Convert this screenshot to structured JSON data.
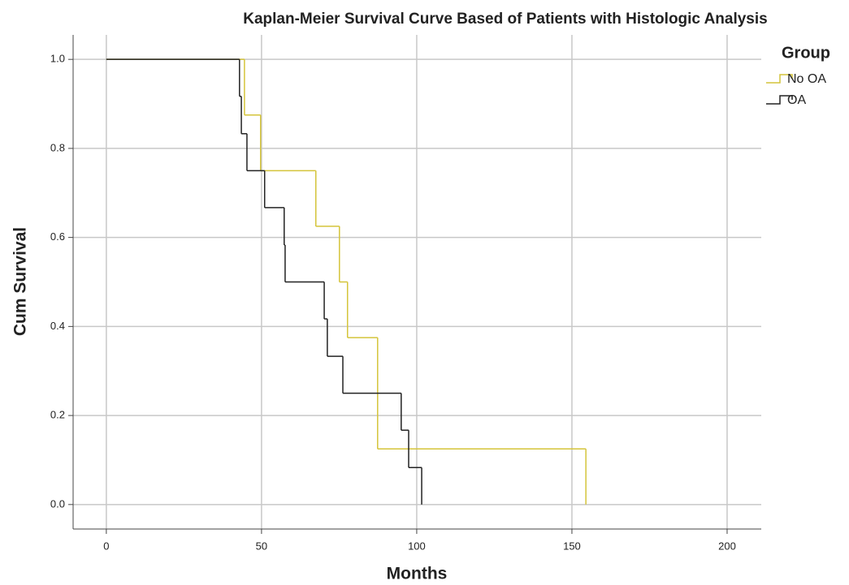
{
  "chart_data": {
    "type": "step",
    "title": "Kaplan-Meier Survival Curve Based of Patients with Histologic Analysis",
    "xlabel": "Months",
    "ylabel": "Cum Survival",
    "legend_title": "Group",
    "legend": "right-top",
    "series": [
      {
        "name": "No OA",
        "color": "#d4c43a",
        "x": [
          0,
          44.5,
          49.7,
          67.5,
          75.1,
          77.7,
          87.4,
          154.5
        ],
        "values": [
          1.0,
          0.875,
          0.75,
          0.625,
          0.5,
          0.375,
          0.125,
          0.0
        ]
      },
      {
        "name": "OA",
        "color": "#222222",
        "x": [
          0,
          42.9,
          43.5,
          45.3,
          51.0,
          57.3,
          57.6,
          70.2,
          71.2,
          76.2,
          95.0,
          97.4,
          101.6
        ],
        "values": [
          1.0,
          0.917,
          0.833,
          0.75,
          0.667,
          0.583,
          0.5,
          0.417,
          0.333,
          0.25,
          0.167,
          0.083,
          0.0
        ]
      }
    ],
    "xlim": [
      -10.7,
      211
    ],
    "ylim": [
      -0.055,
      1.055
    ],
    "xticks": [
      0,
      50,
      100,
      150,
      200
    ],
    "yticks": [
      {
        "value": 0,
        "label": "0.0"
      },
      0.2,
      0.4,
      0.6,
      0.8,
      {
        "value": 1,
        "label": "1.0"
      }
    ],
    "grid": true
  }
}
